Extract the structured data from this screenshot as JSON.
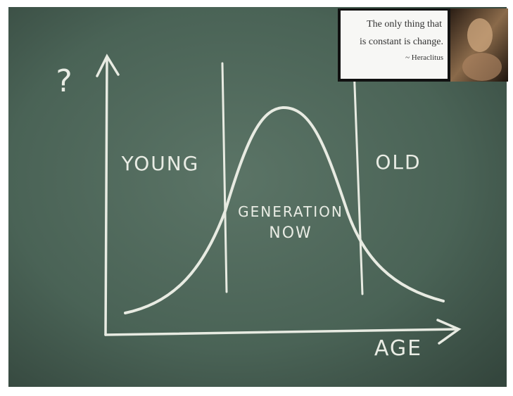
{
  "axes": {
    "y_label": "?",
    "x_label": "AGE"
  },
  "regions": {
    "young": "YOUNG",
    "old": "OLD",
    "middle": [
      "GENERATION",
      "NOW"
    ]
  },
  "quote": {
    "lines": [
      "The only thing that",
      "is constant is change."
    ],
    "attribution": "~ Heraclitus"
  }
}
